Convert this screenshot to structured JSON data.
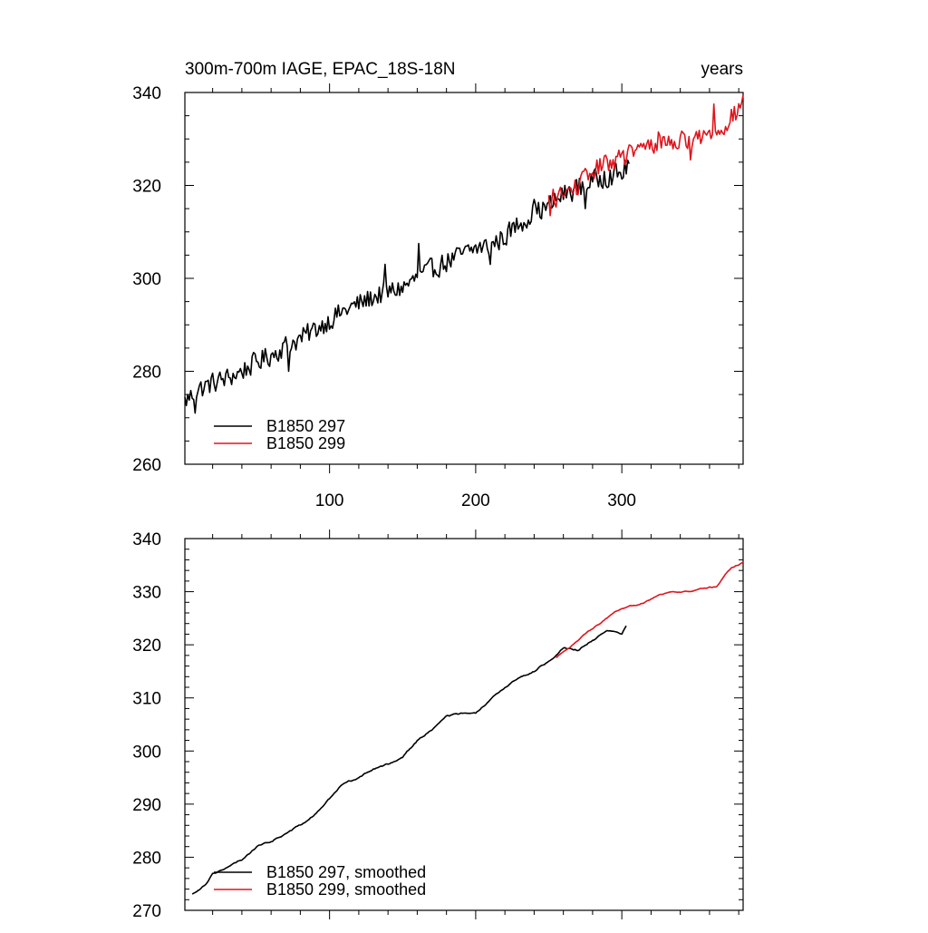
{
  "chart_data": [
    {
      "type": "line",
      "title": "300m-700m IAGE, EPAC_18S-18N",
      "units": "years",
      "xlim": [
        1,
        383
      ],
      "ylim": [
        260,
        340
      ],
      "x_ticks": [
        100,
        200,
        300
      ],
      "x_tick_labels": [
        "100",
        "200",
        "300"
      ],
      "y_ticks": [
        260,
        280,
        300,
        320,
        340
      ],
      "y_tick_labels": [
        "260",
        "280",
        "300",
        "320",
        "340"
      ],
      "legend_position": "bottom-left",
      "series": [
        {
          "name": "B1850 297",
          "color": "#000000",
          "x_start": 1,
          "x_end": 305,
          "noise": 2.2,
          "knots": [
            [
              1,
              273.5
            ],
            [
              10,
              276
            ],
            [
              20,
              277.5
            ],
            [
              30,
              278.5
            ],
            [
              40,
              280
            ],
            [
              50,
              282
            ],
            [
              60,
              283.5
            ],
            [
              70,
              285.5
            ],
            [
              80,
              287
            ],
            [
              90,
              289
            ],
            [
              100,
              291
            ],
            [
              110,
              293
            ],
            [
              120,
              294.5
            ],
            [
              130,
              296
            ],
            [
              140,
              297
            ],
            [
              150,
              298
            ],
            [
              160,
              300
            ],
            [
              170,
              302
            ],
            [
              180,
              303.5
            ],
            [
              190,
              305
            ],
            [
              200,
              306.5
            ],
            [
              210,
              307
            ],
            [
              220,
              309
            ],
            [
              230,
              312
            ],
            [
              240,
              314
            ],
            [
              250,
              315.5
            ],
            [
              260,
              318
            ],
            [
              270,
              319.5
            ],
            [
              280,
              321
            ],
            [
              290,
              322
            ],
            [
              300,
              322.5
            ],
            [
              305,
              325
            ]
          ],
          "dips": [
            [
              8,
              271
            ],
            [
              72,
              280
            ],
            [
              140,
              296
            ],
            [
              210,
              303
            ],
            [
              275,
              315
            ]
          ],
          "peaks": [
            [
              138,
              303
            ],
            [
              161,
              307.5
            ],
            [
              240,
              317
            ],
            [
              288,
              323
            ]
          ]
        },
        {
          "name": "B1850 299",
          "color": "#e0141c",
          "x_start": 250,
          "x_end": 383,
          "noise": 2.0,
          "knots": [
            [
              250,
              317
            ],
            [
              260,
              318
            ],
            [
              270,
              320
            ],
            [
              280,
              323
            ],
            [
              290,
              325
            ],
            [
              300,
              326
            ],
            [
              310,
              327.5
            ],
            [
              320,
              328.5
            ],
            [
              330,
              329.5
            ],
            [
              340,
              329.5
            ],
            [
              350,
              330
            ],
            [
              360,
              331
            ],
            [
              370,
              333
            ],
            [
              378,
              335.5
            ],
            [
              383,
              338
            ]
          ],
          "dips": [
            [
              251,
              313.5
            ],
            [
              347,
              325.5
            ]
          ],
          "peaks": [
            [
              325,
              331.5
            ],
            [
              363,
              337.5
            ],
            [
              383,
              339.5
            ]
          ]
        }
      ]
    },
    {
      "type": "line",
      "title": "",
      "xlim": [
        1,
        383
      ],
      "ylim": [
        270,
        340
      ],
      "x_ticks": [
        100,
        200,
        300
      ],
      "y_ticks": [
        270,
        280,
        290,
        300,
        310,
        320,
        330,
        340
      ],
      "y_tick_labels": [
        "270",
        "280",
        "290",
        "300",
        "310",
        "320",
        "330",
        "340"
      ],
      "legend_position": "bottom-left",
      "series": [
        {
          "name": "B1850 297, smoothed",
          "color": "#000000",
          "x_start": 6,
          "x_end": 303,
          "noise": 0.25,
          "knots": [
            [
              6,
              273
            ],
            [
              15,
              275
            ],
            [
              20,
              277
            ],
            [
              30,
              278
            ],
            [
              40,
              279.5
            ],
            [
              50,
              282
            ],
            [
              60,
              283
            ],
            [
              70,
              284.5
            ],
            [
              80,
              286
            ],
            [
              90,
              288
            ],
            [
              100,
              291
            ],
            [
              110,
              294
            ],
            [
              120,
              295
            ],
            [
              130,
              296.5
            ],
            [
              140,
              297.5
            ],
            [
              150,
              299
            ],
            [
              160,
              302
            ],
            [
              170,
              304
            ],
            [
              180,
              306.5
            ],
            [
              190,
              307
            ],
            [
              200,
              307
            ],
            [
              210,
              309.5
            ],
            [
              220,
              312
            ],
            [
              230,
              314
            ],
            [
              240,
              315
            ],
            [
              250,
              317
            ],
            [
              260,
              319.5
            ],
            [
              270,
              319
            ],
            [
              280,
              321
            ],
            [
              290,
              322.5
            ],
            [
              300,
              322
            ],
            [
              303,
              323.5
            ]
          ]
        },
        {
          "name": "B1850 299, smoothed",
          "color": "#e0141c",
          "x_start": 255,
          "x_end": 383,
          "noise": 0.2,
          "knots": [
            [
              255,
              317.5
            ],
            [
              265,
              319.5
            ],
            [
              275,
              322
            ],
            [
              285,
              324
            ],
            [
              295,
              326
            ],
            [
              305,
              327
            ],
            [
              315,
              328
            ],
            [
              325,
              329.5
            ],
            [
              335,
              330
            ],
            [
              345,
              330
            ],
            [
              355,
              330.5
            ],
            [
              365,
              331
            ],
            [
              370,
              333
            ],
            [
              375,
              334.5
            ],
            [
              383,
              335.5
            ]
          ]
        }
      ]
    }
  ]
}
